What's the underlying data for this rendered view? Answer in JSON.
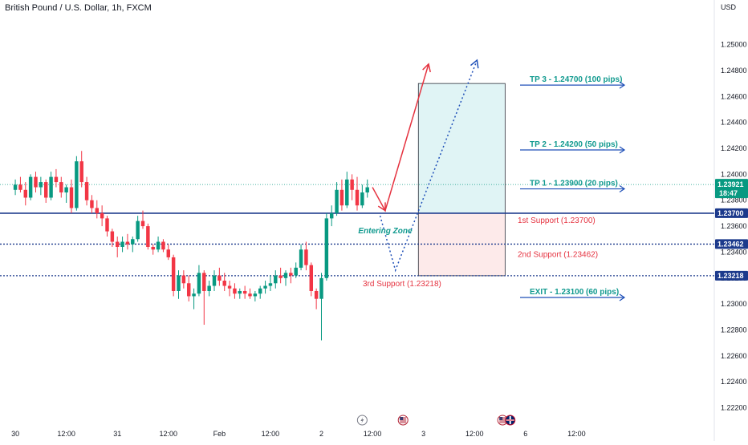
{
  "header": {
    "symbol_line": "British Pound / U.S. Dollar, 1h, FXCM"
  },
  "colors": {
    "up": "#089981",
    "down": "#F23645",
    "blue": "#1E4FB8",
    "navy": "#1C3A8C",
    "teal": "#119A8F",
    "red": "#E53340",
    "tp_zone": "#E0F4F5",
    "sl_zone": "#FDEAEA",
    "last_price": "#089981"
  },
  "chart_data": {
    "type": "candlestick",
    "title": "British Pound / U.S. Dollar, 1h, FXCM",
    "y_axis": {
      "unit": "USD",
      "range": [
        1.2208,
        1.2522
      ],
      "ticks": [
        1.25,
        1.248,
        1.246,
        1.244,
        1.242,
        1.24,
        1.238,
        1.236,
        1.234,
        1.232,
        1.23,
        1.228,
        1.226,
        1.224,
        1.222
      ],
      "tick_labels": [
        "1.25000",
        "1.24800",
        "1.24600",
        "1.24400",
        "1.24200",
        "1.24000",
        "1.23800",
        "1.23600",
        "1.23400",
        "1.23200",
        "1.23000",
        "1.22800",
        "1.22600",
        "1.22400",
        "1.22200"
      ]
    },
    "x_axis": {
      "bars_per_day": 24,
      "range_index": [
        -3,
        137
      ],
      "tick_labels": [
        {
          "label": "30",
          "index": 0
        },
        {
          "label": "12:00",
          "index": 10
        },
        {
          "label": "31",
          "index": 20
        },
        {
          "label": "12:00",
          "index": 30
        },
        {
          "label": "Feb",
          "index": 40
        },
        {
          "label": "12:00",
          "index": 50
        },
        {
          "label": "2",
          "index": 60
        },
        {
          "label": "12:00",
          "index": 70
        },
        {
          "label": "3",
          "index": 80
        },
        {
          "label": "12:00",
          "index": 90
        },
        {
          "label": "6",
          "index": 100
        },
        {
          "label": "12:00",
          "index": 110
        }
      ]
    },
    "candles": [
      [
        1.2388,
        1.2396,
        1.2384,
        1.2392
      ],
      [
        1.2392,
        1.2398,
        1.2386,
        1.2388
      ],
      [
        1.2388,
        1.2394,
        1.2376,
        1.2382
      ],
      [
        1.2382,
        1.24,
        1.238,
        1.2398
      ],
      [
        1.2398,
        1.2402,
        1.2386,
        1.239
      ],
      [
        1.239,
        1.2398,
        1.2384,
        1.2394
      ],
      [
        1.2394,
        1.2396,
        1.2378,
        1.2382
      ],
      [
        1.2382,
        1.2402,
        1.238,
        1.2398
      ],
      [
        1.2398,
        1.2404,
        1.239,
        1.2394
      ],
      [
        1.2394,
        1.2398,
        1.2382,
        1.2386
      ],
      [
        1.2386,
        1.2392,
        1.2378,
        1.239
      ],
      [
        1.239,
        1.2396,
        1.237,
        1.2374
      ],
      [
        1.2374,
        1.2414,
        1.2372,
        1.241
      ],
      [
        1.241,
        1.2418,
        1.239,
        1.2394
      ],
      [
        1.2394,
        1.2398,
        1.2376,
        1.238
      ],
      [
        1.238,
        1.2384,
        1.237,
        1.2374
      ],
      [
        1.2374,
        1.238,
        1.2366,
        1.237
      ],
      [
        1.237,
        1.2376,
        1.236,
        1.2366
      ],
      [
        1.2366,
        1.2368,
        1.2352,
        1.2356
      ],
      [
        1.2356,
        1.2358,
        1.2344,
        1.2348
      ],
      [
        1.2348,
        1.2352,
        1.2336,
        1.2344
      ],
      [
        1.2344,
        1.2352,
        1.234,
        1.2348
      ],
      [
        1.2348,
        1.2354,
        1.2342,
        1.2346
      ],
      [
        1.2346,
        1.2352,
        1.234,
        1.235
      ],
      [
        1.235,
        1.2368,
        1.2348,
        1.2364
      ],
      [
        1.2364,
        1.2372,
        1.2358,
        1.236
      ],
      [
        1.236,
        1.2362,
        1.2342,
        1.2344
      ],
      [
        1.2344,
        1.2346,
        1.2338,
        1.2342
      ],
      [
        1.2342,
        1.2352,
        1.234,
        1.2348
      ],
      [
        1.2348,
        1.235,
        1.234,
        1.2342
      ],
      [
        1.2342,
        1.2346,
        1.2334,
        1.2336
      ],
      [
        1.2336,
        1.2338,
        1.2306,
        1.231
      ],
      [
        1.231,
        1.2326,
        1.2304,
        1.2322
      ],
      [
        1.2322,
        1.2326,
        1.2312,
        1.2316
      ],
      [
        1.2316,
        1.2322,
        1.2302,
        1.2306
      ],
      [
        1.2306,
        1.2312,
        1.2296,
        1.2308
      ],
      [
        1.2308,
        1.233,
        1.2306,
        1.2324
      ],
      [
        1.2324,
        1.2326,
        1.2284,
        1.231
      ],
      [
        1.231,
        1.2318,
        1.2306,
        1.2314
      ],
      [
        1.2314,
        1.2326,
        1.231,
        1.2322
      ],
      [
        1.2322,
        1.2328,
        1.2314,
        1.2318
      ],
      [
        1.2318,
        1.2324,
        1.231,
        1.2314
      ],
      [
        1.2314,
        1.2318,
        1.2306,
        1.2312
      ],
      [
        1.2312,
        1.2316,
        1.2304,
        1.2308
      ],
      [
        1.2308,
        1.2312,
        1.2304,
        1.231
      ],
      [
        1.231,
        1.2314,
        1.2304,
        1.2308
      ],
      [
        1.2308,
        1.2312,
        1.2304,
        1.2306
      ],
      [
        1.2306,
        1.231,
        1.2302,
        1.2308
      ],
      [
        1.2308,
        1.2314,
        1.2304,
        1.2312
      ],
      [
        1.2312,
        1.2318,
        1.2308,
        1.2314
      ],
      [
        1.2314,
        1.2322,
        1.231,
        1.2316
      ],
      [
        1.2316,
        1.2326,
        1.2312,
        1.2322
      ],
      [
        1.2322,
        1.2328,
        1.2316,
        1.232
      ],
      [
        1.232,
        1.2326,
        1.2314,
        1.2324
      ],
      [
        1.2324,
        1.2328,
        1.2316,
        1.2322
      ],
      [
        1.2322,
        1.2332,
        1.232,
        1.2328
      ],
      [
        1.2328,
        1.2346,
        1.2326,
        1.2342
      ],
      [
        1.2342,
        1.2348,
        1.2326,
        1.233
      ],
      [
        1.233,
        1.2332,
        1.2306,
        1.231
      ],
      [
        1.231,
        1.2312,
        1.2296,
        1.2304
      ],
      [
        1.2304,
        1.2324,
        1.2272,
        1.232
      ],
      [
        1.232,
        1.237,
        1.2318,
        1.2366
      ],
      [
        1.2366,
        1.2376,
        1.236,
        1.237
      ],
      [
        1.237,
        1.2394,
        1.2368,
        1.2388
      ],
      [
        1.2388,
        1.2396,
        1.2372,
        1.2376
      ],
      [
        1.2376,
        1.2402,
        1.2374,
        1.2396
      ],
      [
        1.2396,
        1.24,
        1.238,
        1.2388
      ],
      [
        1.2388,
        1.2398,
        1.2372,
        1.2376
      ],
      [
        1.2376,
        1.2392,
        1.2374,
        1.2386
      ],
      [
        1.2386,
        1.2396,
        1.2382,
        1.239
      ]
    ],
    "levels": [
      {
        "price": 1.237,
        "style": "solid",
        "tag": "1.23700"
      },
      {
        "price": 1.23462,
        "style": "dotted",
        "tag": "1.23462"
      },
      {
        "price": 1.23218,
        "style": "dotted",
        "tag": "1.23218"
      }
    ],
    "last_price": {
      "value": "1.23921",
      "countdown": "18:47",
      "price": 1.23921
    },
    "position_box": {
      "top": 1.247,
      "entry": 1.237,
      "bottom": 1.23218,
      "start_index": 79,
      "end_index": 96
    },
    "take_profits": [
      {
        "label": "TP 3 - 1.24700 (100 pips)",
        "price": 1.247
      },
      {
        "label": "TP 2 - 1.24200 (50 pips)",
        "price": 1.242
      },
      {
        "label": "TP 1 - 1.23900 (20 pips)",
        "price": 1.239
      }
    ],
    "exit": {
      "label": "EXIT - 1.23100 (60 pips)",
      "price": 1.231
    },
    "supports": [
      {
        "label": "1st Support (1.23700)",
        "price": 1.237
      },
      {
        "label": "2nd Support (1.23462)",
        "price": 1.23462
      },
      {
        "label": "3rd Support (1.23218)",
        "price": 1.23218
      }
    ],
    "zone_label": "Entering Zone",
    "projection_solid": [
      {
        "index": 70,
        "price": 1.239
      },
      {
        "index": 72.5,
        "price": 1.2372
      },
      {
        "index": 81,
        "price": 1.2485
      }
    ],
    "projection_dotted": [
      {
        "index": 71.5,
        "price": 1.2368
      },
      {
        "index": 74.5,
        "price": 1.2326
      },
      {
        "index": 90.5,
        "price": 1.2488
      }
    ],
    "event_markers": [
      {
        "icon": "lightning-icon",
        "index": 68
      },
      {
        "icon": "us-flag-icon",
        "index": 76
      },
      {
        "icon": "us-flag-icon",
        "index": 95.5
      },
      {
        "icon": "uk-flag-icon",
        "index": 97
      }
    ]
  }
}
